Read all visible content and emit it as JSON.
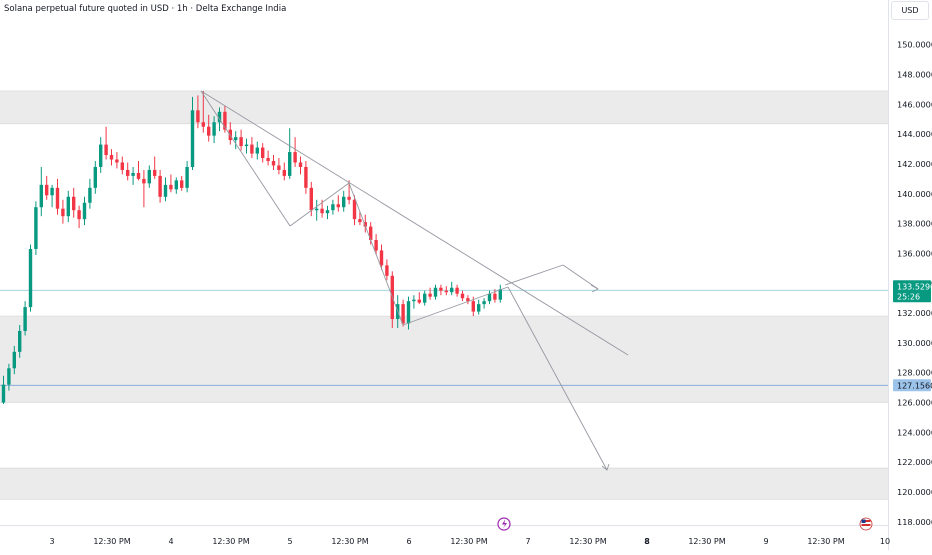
{
  "header": {
    "title": "Solana perpetual future quoted in USD · 1h · Delta Exchange India",
    "currency": "USD"
  },
  "price_badges": {
    "last_price": "133.5290",
    "countdown": "25:26",
    "level": "127.1560"
  },
  "colors": {
    "up": "#089981",
    "down": "#f23645",
    "zone": "#ebebeb",
    "trendline": "#9598a1",
    "last_line": "#86c7d6",
    "level_line": "#7ea6d8",
    "level_badge": "#9cc3ea"
  },
  "chart_data": {
    "type": "candlestick",
    "title": "Solana perpetual future quoted in USD · 1h · Delta Exchange India",
    "y_axis": {
      "range": [
        117.5,
        151.6
      ],
      "ticks": [
        "150.0000",
        "148.0000",
        "146.0000",
        "144.0000",
        "142.0000",
        "140.0000",
        "138.0000",
        "136.0000",
        "134.0000",
        "132.0000",
        "130.0000",
        "128.0000",
        "126.0000",
        "124.0000",
        "122.0000",
        "120.0000",
        "118.0000"
      ]
    },
    "x_axis": {
      "ticks": [
        {
          "label": "3",
          "bold": false
        },
        {
          "label": "12:30 PM",
          "bold": false
        },
        {
          "label": "4",
          "bold": false
        },
        {
          "label": "12:30 PM",
          "bold": false
        },
        {
          "label": "5",
          "bold": false
        },
        {
          "label": "12:30 PM",
          "bold": false
        },
        {
          "label": "6",
          "bold": false
        },
        {
          "label": "12:30 PM",
          "bold": false
        },
        {
          "label": "7",
          "bold": false
        },
        {
          "label": "12:30 PM",
          "bold": false
        },
        {
          "label": "8",
          "bold": true
        },
        {
          "label": "12:30 PM",
          "bold": false
        },
        {
          "label": "9",
          "bold": false
        },
        {
          "label": "12:30 PM",
          "bold": false
        },
        {
          "label": "10",
          "bold": false
        }
      ]
    },
    "zones": [
      {
        "from": 144.7,
        "to": 146.9
      },
      {
        "from": 126.0,
        "to": 131.8
      },
      {
        "from": 119.5,
        "to": 121.6
      }
    ],
    "horizontal_lines": [
      {
        "price": 133.529,
        "kind": "last"
      },
      {
        "price": 127.156,
        "kind": "level"
      }
    ],
    "candles": [
      {
        "o": 126.0,
        "h": 127.8,
        "l": 125.9,
        "c": 127.2
      },
      {
        "o": 127.2,
        "h": 128.6,
        "l": 126.8,
        "c": 128.3
      },
      {
        "o": 128.3,
        "h": 129.8,
        "l": 127.9,
        "c": 129.4
      },
      {
        "o": 129.4,
        "h": 131.2,
        "l": 129.0,
        "c": 130.8
      },
      {
        "o": 130.8,
        "h": 132.8,
        "l": 130.5,
        "c": 132.4
      },
      {
        "o": 132.4,
        "h": 136.6,
        "l": 132.1,
        "c": 136.3
      },
      {
        "o": 136.3,
        "h": 139.5,
        "l": 135.9,
        "c": 139.1
      },
      {
        "o": 139.1,
        "h": 141.8,
        "l": 138.5,
        "c": 140.6
      },
      {
        "o": 140.6,
        "h": 141.2,
        "l": 139.6,
        "c": 139.9
      },
      {
        "o": 139.9,
        "h": 140.6,
        "l": 139.1,
        "c": 140.4
      },
      {
        "o": 140.4,
        "h": 141.0,
        "l": 138.6,
        "c": 139.0
      },
      {
        "o": 139.0,
        "h": 139.6,
        "l": 138.0,
        "c": 138.5
      },
      {
        "o": 138.5,
        "h": 140.2,
        "l": 138.1,
        "c": 139.8
      },
      {
        "o": 139.8,
        "h": 140.4,
        "l": 138.4,
        "c": 138.9
      },
      {
        "o": 138.9,
        "h": 139.2,
        "l": 137.7,
        "c": 138.3
      },
      {
        "o": 138.3,
        "h": 139.8,
        "l": 137.9,
        "c": 139.4
      },
      {
        "o": 139.4,
        "h": 141.0,
        "l": 139.0,
        "c": 140.4
      },
      {
        "o": 140.4,
        "h": 142.2,
        "l": 140.0,
        "c": 141.8
      },
      {
        "o": 141.8,
        "h": 143.8,
        "l": 141.4,
        "c": 143.3
      },
      {
        "o": 143.3,
        "h": 144.5,
        "l": 142.3,
        "c": 142.6
      },
      {
        "o": 142.6,
        "h": 143.0,
        "l": 141.9,
        "c": 142.3
      },
      {
        "o": 142.3,
        "h": 142.8,
        "l": 141.7,
        "c": 142.1
      },
      {
        "o": 142.1,
        "h": 142.5,
        "l": 141.3,
        "c": 141.6
      },
      {
        "o": 141.6,
        "h": 142.1,
        "l": 140.9,
        "c": 141.2
      },
      {
        "o": 141.2,
        "h": 141.8,
        "l": 140.6,
        "c": 141.4
      },
      {
        "o": 141.4,
        "h": 142.2,
        "l": 140.9,
        "c": 141.0
      },
      {
        "o": 141.0,
        "h": 141.6,
        "l": 139.1,
        "c": 140.7
      },
      {
        "o": 140.7,
        "h": 141.9,
        "l": 140.4,
        "c": 141.6
      },
      {
        "o": 141.6,
        "h": 142.5,
        "l": 141.0,
        "c": 141.2
      },
      {
        "o": 141.2,
        "h": 141.6,
        "l": 139.4,
        "c": 139.8
      },
      {
        "o": 139.8,
        "h": 141.1,
        "l": 139.5,
        "c": 140.6
      },
      {
        "o": 140.6,
        "h": 141.3,
        "l": 140.1,
        "c": 140.3
      },
      {
        "o": 140.3,
        "h": 141.1,
        "l": 140.0,
        "c": 140.9
      },
      {
        "o": 140.9,
        "h": 141.2,
        "l": 140.2,
        "c": 140.4
      },
      {
        "o": 140.4,
        "h": 142.2,
        "l": 140.1,
        "c": 141.8
      },
      {
        "o": 141.8,
        "h": 146.5,
        "l": 141.6,
        "c": 145.6
      },
      {
        "o": 145.6,
        "h": 146.6,
        "l": 144.4,
        "c": 144.8
      },
      {
        "o": 144.8,
        "h": 146.9,
        "l": 144.1,
        "c": 144.5
      },
      {
        "o": 144.5,
        "h": 145.3,
        "l": 143.5,
        "c": 143.9
      },
      {
        "o": 143.9,
        "h": 145.2,
        "l": 143.4,
        "c": 144.8
      },
      {
        "o": 144.8,
        "h": 145.8,
        "l": 144.2,
        "c": 145.5
      },
      {
        "o": 145.5,
        "h": 145.9,
        "l": 144.1,
        "c": 144.3
      },
      {
        "o": 144.3,
        "h": 144.8,
        "l": 143.3,
        "c": 143.6
      },
      {
        "o": 143.6,
        "h": 144.2,
        "l": 143.0,
        "c": 143.8
      },
      {
        "o": 143.8,
        "h": 144.3,
        "l": 142.9,
        "c": 143.2
      },
      {
        "o": 143.2,
        "h": 143.7,
        "l": 142.7,
        "c": 143.3
      },
      {
        "o": 143.3,
        "h": 143.8,
        "l": 142.4,
        "c": 142.7
      },
      {
        "o": 142.7,
        "h": 143.5,
        "l": 142.3,
        "c": 143.1
      },
      {
        "o": 143.1,
        "h": 143.4,
        "l": 142.1,
        "c": 142.4
      },
      {
        "o": 142.4,
        "h": 142.9,
        "l": 141.9,
        "c": 142.2
      },
      {
        "o": 142.2,
        "h": 142.6,
        "l": 141.6,
        "c": 141.9
      },
      {
        "o": 141.9,
        "h": 142.4,
        "l": 141.3,
        "c": 141.6
      },
      {
        "o": 141.6,
        "h": 142.1,
        "l": 140.9,
        "c": 141.2
      },
      {
        "o": 141.2,
        "h": 144.4,
        "l": 141.0,
        "c": 142.8
      },
      {
        "o": 142.8,
        "h": 143.8,
        "l": 141.8,
        "c": 142.1
      },
      {
        "o": 142.1,
        "h": 142.5,
        "l": 141.3,
        "c": 141.8
      },
      {
        "o": 141.8,
        "h": 142.2,
        "l": 140.0,
        "c": 140.4
      },
      {
        "o": 140.4,
        "h": 140.8,
        "l": 138.5,
        "c": 138.9
      },
      {
        "o": 138.9,
        "h": 139.6,
        "l": 138.2,
        "c": 139.0
      },
      {
        "o": 139.0,
        "h": 139.6,
        "l": 138.4,
        "c": 138.7
      },
      {
        "o": 138.7,
        "h": 139.2,
        "l": 138.3,
        "c": 138.9
      },
      {
        "o": 138.9,
        "h": 139.6,
        "l": 138.6,
        "c": 139.3
      },
      {
        "o": 139.3,
        "h": 139.9,
        "l": 138.8,
        "c": 139.1
      },
      {
        "o": 139.1,
        "h": 140.2,
        "l": 138.8,
        "c": 139.8
      },
      {
        "o": 139.8,
        "h": 140.9,
        "l": 139.3,
        "c": 139.6
      },
      {
        "o": 139.6,
        "h": 139.9,
        "l": 137.9,
        "c": 138.3
      },
      {
        "o": 138.3,
        "h": 138.8,
        "l": 137.9,
        "c": 138.1
      },
      {
        "o": 138.1,
        "h": 138.6,
        "l": 137.4,
        "c": 137.8
      },
      {
        "o": 137.8,
        "h": 138.1,
        "l": 136.6,
        "c": 136.9
      },
      {
        "o": 136.9,
        "h": 137.3,
        "l": 135.9,
        "c": 136.2
      },
      {
        "o": 136.2,
        "h": 136.6,
        "l": 134.9,
        "c": 135.2
      },
      {
        "o": 135.2,
        "h": 135.6,
        "l": 134.2,
        "c": 134.5
      },
      {
        "o": 134.5,
        "h": 134.8,
        "l": 131.0,
        "c": 131.6
      },
      {
        "o": 131.6,
        "h": 133.2,
        "l": 131.0,
        "c": 132.6
      },
      {
        "o": 132.6,
        "h": 132.9,
        "l": 131.1,
        "c": 131.3
      },
      {
        "o": 131.3,
        "h": 133.1,
        "l": 130.9,
        "c": 132.8
      },
      {
        "o": 132.8,
        "h": 133.2,
        "l": 132.3,
        "c": 132.9
      },
      {
        "o": 132.9,
        "h": 133.4,
        "l": 132.6,
        "c": 132.7
      },
      {
        "o": 132.7,
        "h": 133.5,
        "l": 132.5,
        "c": 133.3
      },
      {
        "o": 133.3,
        "h": 133.7,
        "l": 132.9,
        "c": 133.1
      },
      {
        "o": 133.1,
        "h": 133.9,
        "l": 132.9,
        "c": 133.7
      },
      {
        "o": 133.7,
        "h": 133.9,
        "l": 133.2,
        "c": 133.5
      },
      {
        "o": 133.5,
        "h": 133.8,
        "l": 133.2,
        "c": 133.4
      },
      {
        "o": 133.4,
        "h": 134.1,
        "l": 133.2,
        "c": 133.7
      },
      {
        "o": 133.7,
        "h": 133.9,
        "l": 133.1,
        "c": 133.3
      },
      {
        "o": 133.3,
        "h": 133.5,
        "l": 132.8,
        "c": 133.0
      },
      {
        "o": 133.0,
        "h": 133.2,
        "l": 132.6,
        "c": 132.8
      },
      {
        "o": 132.8,
        "h": 133.1,
        "l": 131.8,
        "c": 132.1
      },
      {
        "o": 132.1,
        "h": 132.9,
        "l": 131.9,
        "c": 132.6
      },
      {
        "o": 132.6,
        "h": 133.0,
        "l": 132.3,
        "c": 132.8
      },
      {
        "o": 132.8,
        "h": 133.5,
        "l": 132.6,
        "c": 133.3
      },
      {
        "o": 133.3,
        "h": 133.6,
        "l": 132.7,
        "c": 132.9
      },
      {
        "o": 132.9,
        "h": 133.9,
        "l": 132.7,
        "c": 133.6
      }
    ]
  }
}
